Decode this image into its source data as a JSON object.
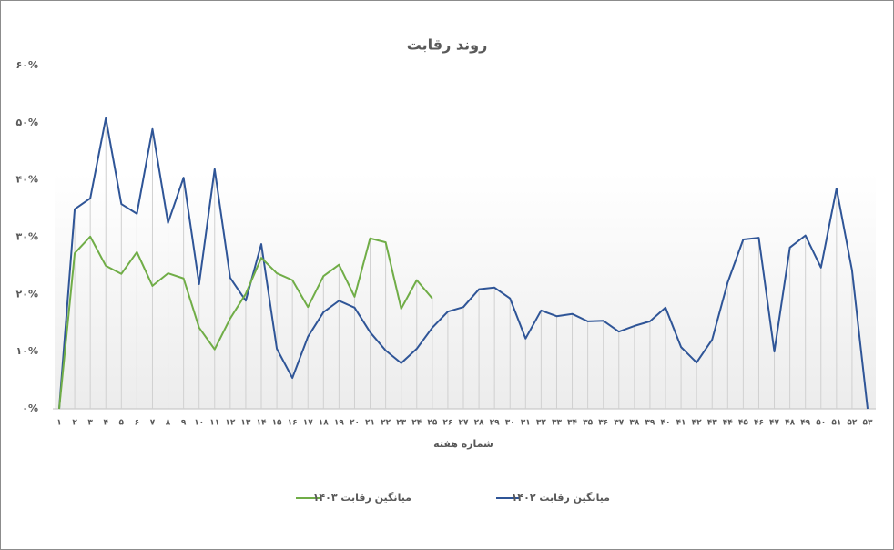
{
  "chart_data": {
    "type": "line",
    "title": "روند رقابت",
    "x_label": "شماره هفته",
    "categories": [
      "۱",
      "۲",
      "۳",
      "۴",
      "۵",
      "۶",
      "۷",
      "۸",
      "۹",
      "۱۰",
      "۱۱",
      "۱۲",
      "۱۳",
      "۱۴",
      "۱۵",
      "۱۶",
      "۱۷",
      "۱۸",
      "۱۹",
      "۲۰",
      "۲۱",
      "۲۲",
      "۲۳",
      "۲۴",
      "۲۵",
      "۲۶",
      "۲۷",
      "۲۸",
      "۲۹",
      "۳۰",
      "۳۱",
      "۳۲",
      "۳۳",
      "۳۴",
      "۳۵",
      "۳۶",
      "۳۷",
      "۳۸",
      "۳۹",
      "۴۰",
      "۴۱",
      "۴۲",
      "۴۳",
      "۴۴",
      "۴۵",
      "۴۶",
      "۴۷",
      "۴۸",
      "۴۹",
      "۵۰",
      "۵۱",
      "۵۲",
      "۵۳"
    ],
    "series": [
      {
        "name": "میانگین رقابت ۱۴۰۳",
        "color": "#70ad47",
        "values": [
          0,
          27.2,
          30.1,
          25.0,
          23.6,
          27.4,
          21.5,
          23.7,
          22.8,
          14.2,
          10.4,
          15.8,
          20.1,
          26.4,
          23.7,
          22.5,
          17.8,
          23.2,
          25.2,
          19.6,
          29.8,
          29.1,
          17.5,
          22.5,
          19.3,
          null,
          null,
          null,
          null,
          null,
          null,
          null,
          null,
          null,
          null,
          null,
          null,
          null,
          null,
          null,
          null,
          null,
          null,
          null,
          null,
          null,
          null,
          null,
          null,
          null,
          null,
          null,
          null
        ]
      },
      {
        "name": "میانگین رقابت ۱۴۰۲",
        "color": "#2f5597",
        "values": [
          0,
          34.9,
          36.8,
          50.8,
          35.8,
          34.1,
          48.9,
          32.5,
          40.4,
          21.8,
          41.9,
          22.9,
          18.9,
          28.8,
          10.5,
          5.4,
          12.6,
          16.9,
          18.9,
          17.7,
          13.4,
          10.2,
          8.0,
          10.5,
          14.2,
          17.0,
          17.8,
          20.9,
          21.2,
          19.3,
          12.3,
          17.2,
          16.2,
          16.6,
          15.3,
          15.4,
          13.5,
          14.5,
          15.3,
          17.7,
          10.8,
          8.1,
          12.1,
          22.1,
          29.6,
          29.9,
          10.0,
          28.2,
          30.3,
          24.7,
          38.5,
          24.2,
          0
        ]
      }
    ],
    "ylim": [
      0,
      60
    ],
    "yticks": [
      {
        "value": 0,
        "label": "۰%"
      },
      {
        "value": 10,
        "label": "۱۰%"
      },
      {
        "value": 20,
        "label": "۲۰%"
      },
      {
        "value": 30,
        "label": "۳۰%"
      },
      {
        "value": 40,
        "label": "۴۰%"
      },
      {
        "value": 50,
        "label": "۵۰%"
      },
      {
        "value": 60,
        "label": "۶۰%"
      }
    ],
    "drop_lines": true,
    "legend": "bottom"
  }
}
